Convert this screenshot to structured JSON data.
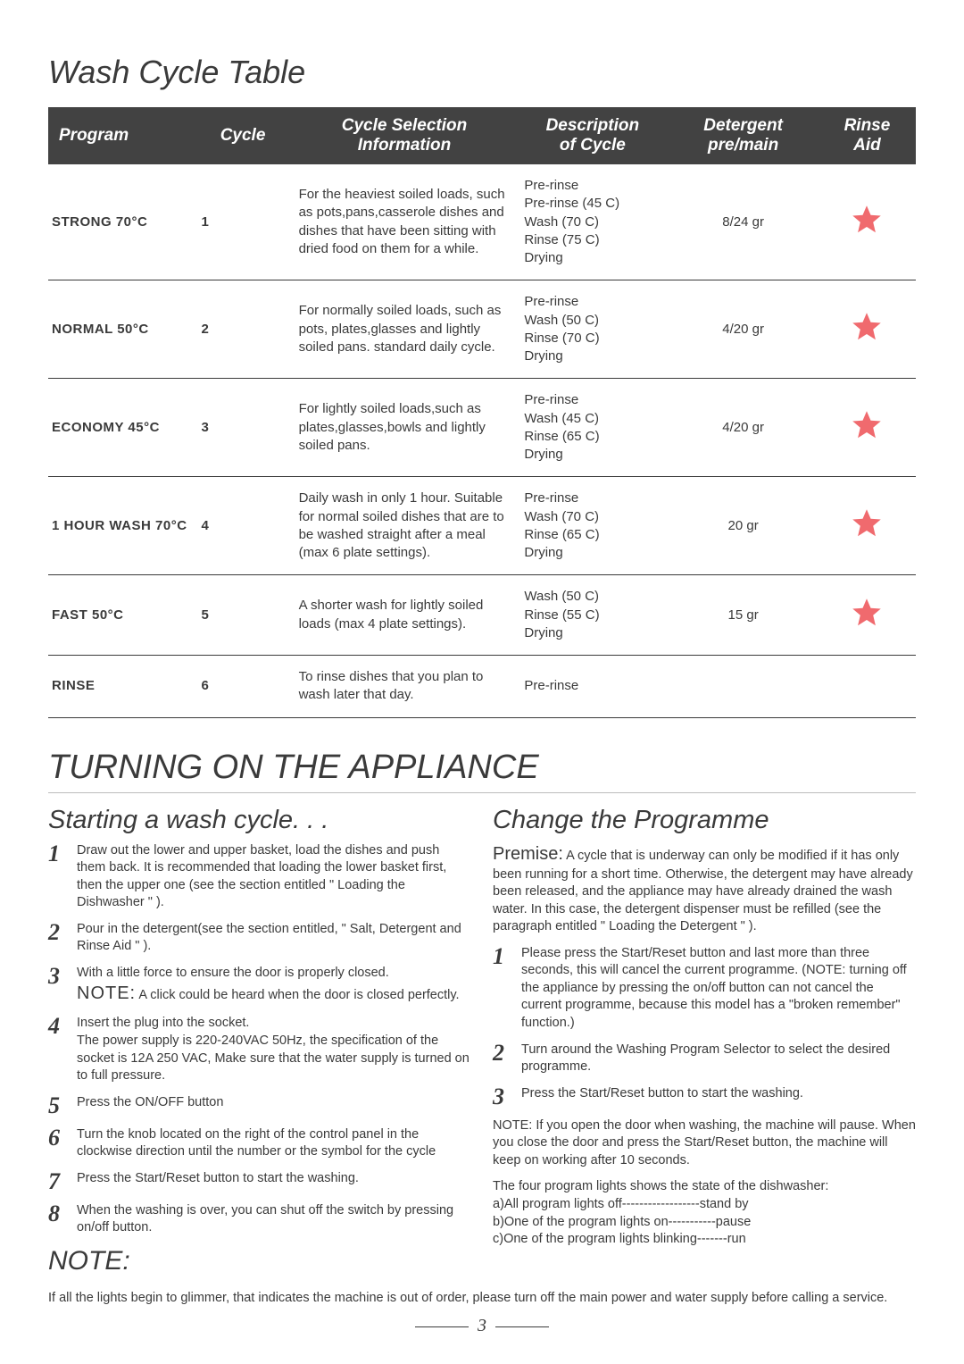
{
  "title": "Wash Cycle Table",
  "table": {
    "headers": {
      "program": "Program",
      "cycle": "Cycle",
      "info1": "Cycle Selection",
      "info2": "Information",
      "desc1": "Description",
      "desc2": "of Cycle",
      "det1": "Detergent",
      "det2": "pre/main",
      "aid1": "Rinse",
      "aid2": "Aid"
    },
    "rows": [
      {
        "program": "STRONG 70°C",
        "cycle": "1",
        "info": "For the heaviest soiled loads, such as pots,pans,casserole dishes and dishes that have been sitting with dried food on them for a while.",
        "desc": "Pre-rinse\nPre-rinse (45  C)\nWash (70  C)\nRinse (75  C)\nDrying",
        "det": "8/24 gr",
        "aid": true
      },
      {
        "program": "NORMAL 50°C",
        "cycle": "2",
        "info": "For normally soiled loads, such as pots, plates,glasses and lightly soiled pans. standard daily cycle.",
        "desc": "Pre-rinse\nWash (50  C)\nRinse (70  C)\nDrying",
        "det": "4/20 gr",
        "aid": true
      },
      {
        "program": "ECONOMY 45°C",
        "cycle": "3",
        "info": "For lightly soiled loads,such as plates,glasses,bowls and lightly soiled pans.",
        "desc": "Pre-rinse\nWash (45  C)\nRinse (65  C)\nDrying",
        "det": "4/20 gr",
        "aid": true
      },
      {
        "program": "1 HOUR WASH 70°C",
        "cycle": "4",
        "info": "Daily wash in only 1 hour. Suitable for normal soiled dishes that are to be washed straight after a meal (max 6 plate settings).",
        "desc": "Pre-rinse\nWash (70  C)\nRinse (65  C)\nDrying",
        "det": "20 gr",
        "aid": true
      },
      {
        "program": "FAST 50°C",
        "cycle": "5",
        "info": "A shorter wash for lightly soiled loads (max 4 plate settings).",
        "desc": "Wash (50  C)\nRinse (55  C)\nDrying",
        "det": "15 gr",
        "aid": true
      },
      {
        "program": "RINSE",
        "cycle": "6",
        "info": "To rinse dishes that you plan to wash later that day.",
        "desc": "Pre-rinse",
        "det": "",
        "aid": false
      }
    ]
  },
  "section2_title": "TURNING ON THE APPLIANCE",
  "left": {
    "title": "Starting a wash cycle. . .",
    "steps": [
      "Draw out the lower and upper basket, load the dishes and push them back. It is recommended that loading the lower basket first, then the upper one (see the section entitled \" Loading the Dishwasher \" ).",
      "Pour in the detergent(see the section entitled, \" Salt, Detergent and Rinse Aid \" ).",
      "With a little force to ensure the door is properly closed.",
      "Insert the plug into the socket.\nThe power supply is 220-240VAC 50Hz, the specification of the socket is 12A 250 VAC, Make sure that the water supply is turned on to full pressure.",
      "Press the ON/OFF button",
      "Turn the knob located on the right of the control panel in the clockwise direction until the number or the symbol for the cycle",
      "Press the Start/Reset button to start the washing.",
      "When the washing is over, you can shut off the switch by pressing on/off button."
    ],
    "note_after_3": "A click  could be heard when the door is closed perfectly.",
    "note_label": "NOTE:",
    "big_note": "NOTE:"
  },
  "right": {
    "title": "Change the Programme",
    "premise_label": "Premise:",
    "premise": " A cycle that is underway can only be modified if it has only been running for a short time. Otherwise, the detergent may have already been released, and the appliance may have already drained the wash water. In this case, the detergent dispenser must be refilled (see the paragraph entitled \" Loading the Detergent \" ).",
    "steps": [
      "Please press the Start/Reset button and last more than three seconds, this will cancel the current programme. (NOTE: turning off the appliance by pressing the on/off button can not cancel the current programme, because this model has a \"broken remember\" function.)",
      "Turn around  the Washing Program Selector to select the desired programme.",
      "Press the Start/Reset  button to start the washing."
    ],
    "note1": "NOTE: If you open the door when washing, the machine will pause. When you close the door and press the Start/Reset button, the machine will keep on working after 10 seconds.",
    "note2": "The four program lights shows the state of the dishwasher:\na)All program lights off------------------stand by\nb)One of the program lights on-----------pause\nc)One of the program lights blinking-------run"
  },
  "footer": "If all the lights begin to glimmer, that indicates the machine is out of order, please turn off the main power and water supply before calling a service.",
  "page_num": "3",
  "colors": {
    "star_fill": "#f06a6e",
    "header_bg": "#424242",
    "text": "#3a3a3a"
  }
}
